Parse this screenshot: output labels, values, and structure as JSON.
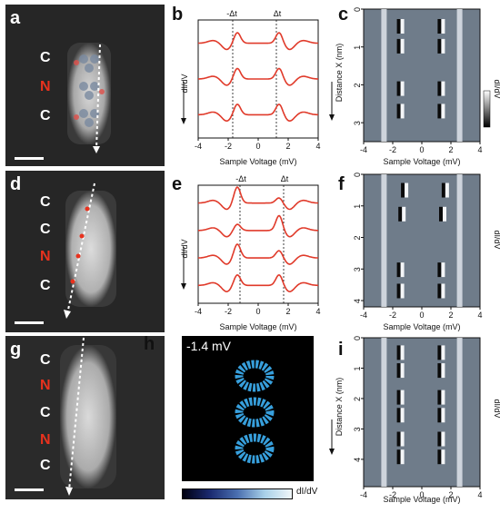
{
  "panels": {
    "a": "a",
    "b": "b",
    "c": "c",
    "d": "d",
    "e": "e",
    "f": "f",
    "g": "g",
    "h": "h",
    "i": "i"
  },
  "topo_labels": {
    "a": [
      "C",
      "N",
      "C"
    ],
    "d": [
      "C",
      "C",
      "N",
      "C"
    ],
    "g": [
      "C",
      "N",
      "C",
      "N",
      "C"
    ]
  },
  "spectra": {
    "marker_left": "-Δt",
    "marker_right": "Δt",
    "ylabel": "dI/dV",
    "xlabel": "Sample Voltage (mV)",
    "xticks": [
      "-4",
      "-2",
      "0",
      "2",
      "4"
    ]
  },
  "maps": {
    "xlabel": "Sample Voltage (mV)",
    "ylabel": "Distance X (nm)",
    "colorbar_label": "dI/dV",
    "xticks": [
      "-4",
      "-2",
      "0",
      "2",
      "4"
    ],
    "c_yticks": [
      "0",
      "1",
      "2",
      "3"
    ],
    "f_yticks": [
      "0",
      "1",
      "2",
      "3",
      "4"
    ],
    "i_yticks": [
      "0",
      "1",
      "2",
      "3",
      "4"
    ]
  },
  "h_map": {
    "energy_label": "-1.4 mV",
    "colorbar_label": "dI/dV"
  },
  "colors": {
    "curve": "#e03a2a",
    "nitrogen": "#e8321e",
    "map_cyan": "#3aa8e8"
  },
  "chart_data": [
    {
      "type": "line",
      "panel": "b",
      "xlabel": "Sample Voltage (mV)",
      "ylabel": "dI/dV",
      "xlim": [
        -4,
        4
      ],
      "markers": [
        -1.4,
        1.4
      ],
      "series_count": 3
    },
    {
      "type": "line",
      "panel": "e",
      "xlabel": "Sample Voltage (mV)",
      "ylabel": "dI/dV",
      "xlim": [
        -4,
        4
      ],
      "markers": [
        -1.4,
        1.4
      ],
      "series_count": 4
    },
    {
      "type": "heatmap",
      "panel": "c",
      "xlabel": "Sample Voltage (mV)",
      "ylabel": "Distance X (nm)",
      "xlim": [
        -4,
        4
      ],
      "ylim": [
        0,
        3.5
      ]
    },
    {
      "type": "heatmap",
      "panel": "f",
      "xlabel": "Sample Voltage (mV)",
      "ylabel": "Distance X (nm)",
      "xlim": [
        -4,
        4
      ],
      "ylim": [
        0,
        4.2
      ]
    },
    {
      "type": "heatmap",
      "panel": "i",
      "xlabel": "Sample Voltage (mV)",
      "ylabel": "Distance X (nm)",
      "xlim": [
        -4,
        4
      ],
      "ylim": [
        0,
        4.9
      ]
    }
  ]
}
